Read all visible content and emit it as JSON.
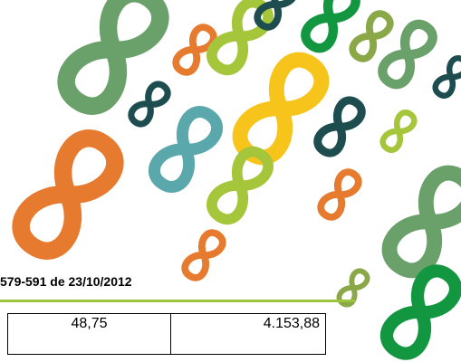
{
  "header": {
    "reference": "579-591 de 23/10/2012"
  },
  "table": {
    "rows": [
      [
        "48,75",
        "4.153,88"
      ]
    ]
  }
}
